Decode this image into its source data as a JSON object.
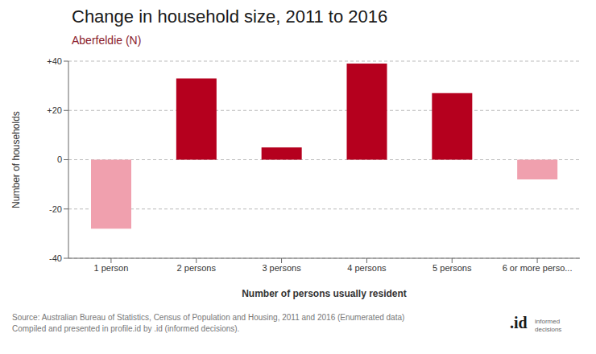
{
  "chart_data": {
    "type": "bar",
    "title": "Change in household size, 2011 to 2016",
    "subtitle": "Aberfeldie (N)",
    "categories": [
      "1 person",
      "2 persons",
      "3 persons",
      "4 persons",
      "5 persons",
      "6 or more perso..."
    ],
    "values": [
      -28,
      33,
      5,
      39,
      27,
      -8
    ],
    "colors": [
      "#f0a0ae",
      "#b5001e",
      "#b5001e",
      "#b5001e",
      "#b5001e",
      "#f0a0ae"
    ],
    "xlabel": "Number of persons usually resident",
    "ylabel": "Number of households",
    "ylim": [
      -40,
      40
    ],
    "yticks": [
      -40,
      -20,
      0,
      {
        "value": 20,
        "label": "+20"
      },
      {
        "value": 40,
        "label": "+40"
      }
    ],
    "grid": true,
    "annotations": [
      "Source: Australian Bureau of Statistics, Census of Population and Housing, 2011 and 2016 (Enumerated data)",
      "Compiled and presented in profile.id by .id (informed decisions).",
      ".id",
      "informed\ndecisions"
    ]
  }
}
